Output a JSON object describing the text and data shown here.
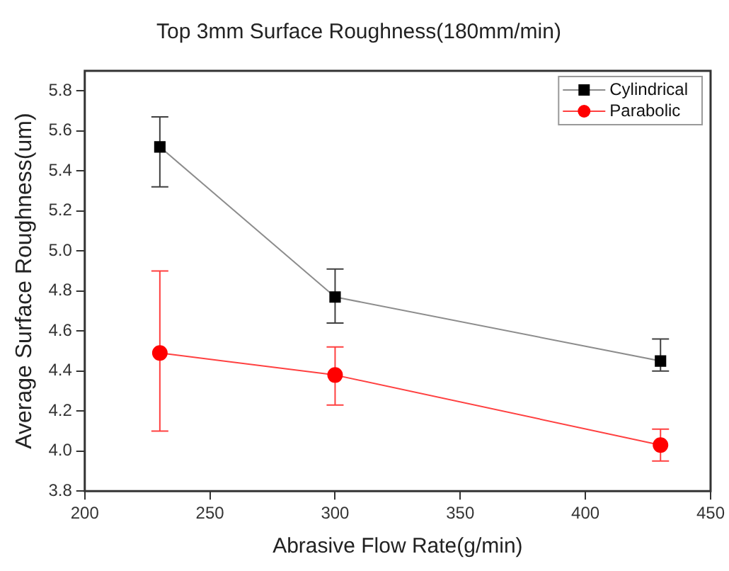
{
  "chart_data": {
    "type": "line",
    "title": "Top 3mm Surface Roughness(180mm/min)",
    "xlabel": "Abrasive Flow Rate(g/min)",
    "ylabel": "Average Surface Roughness(um)",
    "x": [
      230,
      300,
      430
    ],
    "series": [
      {
        "name": "Cylindrical",
        "color": "#000000",
        "marker": "square",
        "values": [
          5.52,
          4.77,
          4.45
        ],
        "errors": [
          [
            5.32,
            5.67
          ],
          [
            4.64,
            4.91
          ],
          [
            4.4,
            4.56
          ]
        ]
      },
      {
        "name": "Parabolic",
        "color": "#ff0000",
        "marker": "circle",
        "values": [
          4.49,
          4.38,
          4.03
        ],
        "errors": [
          [
            4.1,
            4.9
          ],
          [
            4.23,
            4.52
          ],
          [
            3.95,
            4.11
          ]
        ]
      }
    ],
    "xlim": [
      200,
      450
    ],
    "xticks": [
      200,
      250,
      300,
      350,
      400,
      450
    ],
    "ylim": [
      3.8,
      5.9
    ],
    "yticks": [
      3.8,
      {
        "value": 4,
        "label": "4.0"
      },
      4.2,
      4.4,
      4.6,
      4.8,
      {
        "value": 5,
        "label": "5.0"
      },
      5.2,
      5.4,
      5.6,
      5.8
    ],
    "grid": false,
    "legend": "top right"
  }
}
